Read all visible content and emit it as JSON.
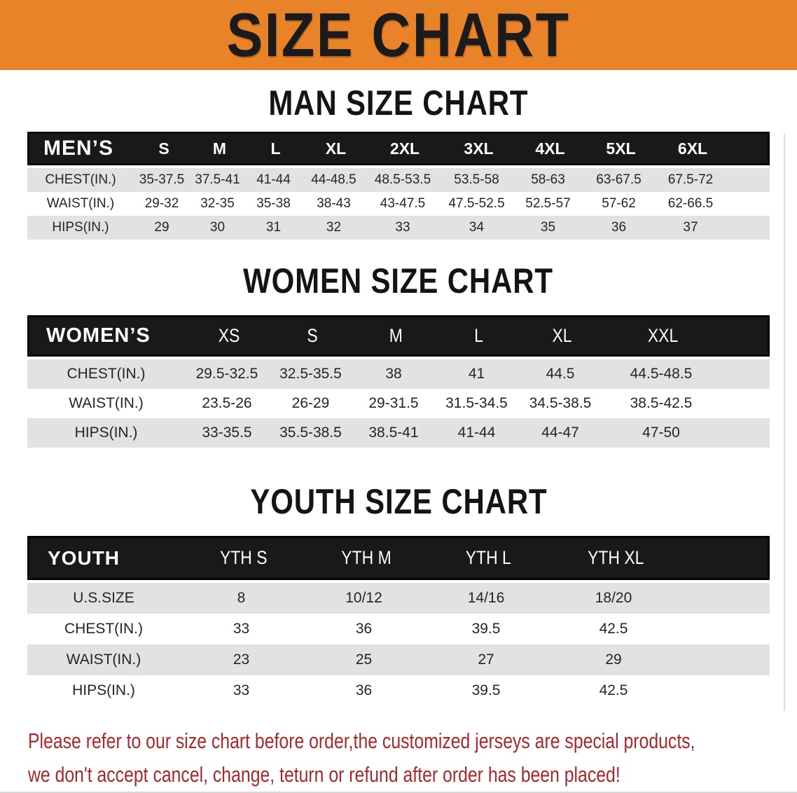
{
  "banner": {
    "title": "SIZE CHART",
    "bg_color": "#E8832A",
    "text_color": "#1b1b1b"
  },
  "sections": [
    {
      "id": "men",
      "title": "MAN SIZE CHART",
      "header_label": "MEN’S",
      "columns": [
        "S",
        "M",
        "L",
        "XL",
        "2XL",
        "3XL",
        "4XL",
        "5XL",
        "6XL"
      ],
      "rows": [
        {
          "label": "CHEST(IN.)",
          "values": [
            "35-37.5",
            "37.5-41",
            "41-44",
            "44-48.5",
            "48.5-53.5",
            "53.5-58",
            "58-63",
            "63-67.5",
            "67.5-72"
          ]
        },
        {
          "label": "WAIST(IN.)",
          "values": [
            "29-32",
            "32-35",
            "35-38",
            "38-43",
            "43-47.5",
            "47.5-52.5",
            "52.5-57",
            "57-62",
            "62-66.5"
          ]
        },
        {
          "label": "HIPS(IN.)",
          "values": [
            "29",
            "30",
            "31",
            "32",
            "33",
            "34",
            "35",
            "36",
            "37"
          ]
        }
      ]
    },
    {
      "id": "women",
      "title": "WOMEN SIZE CHART",
      "header_label": "WOMEN’S",
      "columns": [
        "XS",
        "S",
        "M",
        "L",
        "XL",
        "XXL"
      ],
      "rows": [
        {
          "label": "CHEST(IN.)",
          "values": [
            "29.5-32.5",
            "32.5-35.5",
            "38",
            "41",
            "44.5",
            "44.5-48.5"
          ]
        },
        {
          "label": "WAIST(IN.)",
          "values": [
            "23.5-26",
            "26-29",
            "29-31.5",
            "31.5-34.5",
            "34.5-38.5",
            "38.5-42.5"
          ]
        },
        {
          "label": "HIPS(IN.)",
          "values": [
            "33-35.5",
            "35.5-38.5",
            "38.5-41",
            "41-44",
            "44-47",
            "47-50"
          ]
        }
      ]
    },
    {
      "id": "youth",
      "title": "YOUTH SIZE CHART",
      "header_label": "YOUTH",
      "columns": [
        "YTH S",
        "YTH M",
        "YTH L",
        "YTH XL"
      ],
      "rows": [
        {
          "label": "U.S.SIZE",
          "values": [
            "8",
            "10/12",
            "14/16",
            "18/20"
          ]
        },
        {
          "label": "CHEST(IN.)",
          "values": [
            "33",
            "36",
            "39.5",
            "42.5"
          ]
        },
        {
          "label": "WAIST(IN.)",
          "values": [
            "23",
            "25",
            "27",
            "29"
          ]
        },
        {
          "label": "HIPS(IN.)",
          "values": [
            "33",
            "36",
            "39.5",
            "42.5"
          ]
        }
      ]
    }
  ],
  "disclaimer": {
    "line1": "Please refer to our size chart before order,the customized jerseys are special products,",
    "line2": "we don't accept cancel, change, teturn or refund after order has been placed!",
    "color": "#A9282C"
  },
  "colors": {
    "banner_orange": "#E8832A",
    "table_header_black": "#191919",
    "row_stripe_gray": "#E2E2E2",
    "body_text": "#252525",
    "disclaimer_red": "#A9282C"
  }
}
